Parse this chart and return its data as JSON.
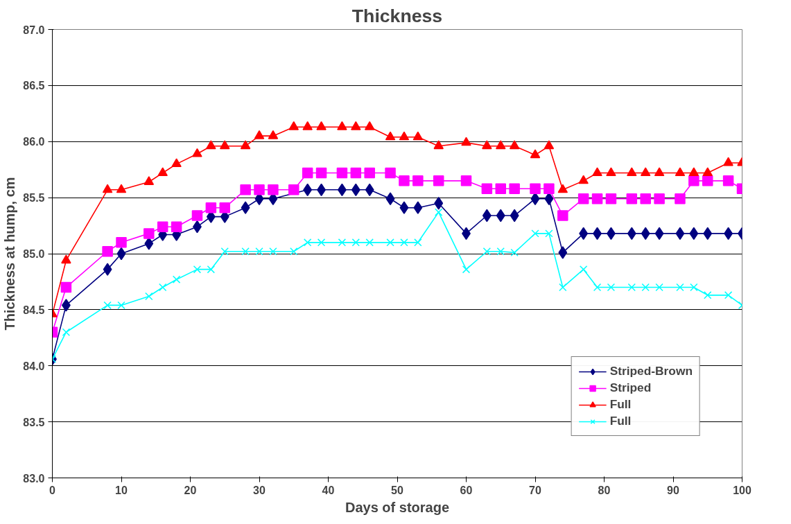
{
  "chart_data": {
    "type": "line",
    "title": "Thickness",
    "xlabel": "Days of storage",
    "ylabel": "Thickness at hump, cm",
    "x": [
      0,
      2,
      8,
      10,
      14,
      16,
      18,
      21,
      23,
      25,
      28,
      30,
      32,
      35,
      37,
      39,
      42,
      44,
      46,
      49,
      51,
      53,
      56,
      60,
      63,
      65,
      67,
      70,
      72,
      74,
      77,
      79,
      81,
      84,
      86,
      88,
      91,
      93,
      95,
      98,
      100
    ],
    "series": [
      {
        "name": "Striped-Brown",
        "color": "#000080",
        "marker": "diamond",
        "x": [
          0,
          2,
          8,
          10,
          14,
          16,
          18,
          21,
          23,
          25,
          28,
          30,
          32,
          37,
          39,
          42,
          44,
          46,
          49,
          51,
          53,
          56,
          60,
          63,
          65,
          67,
          70,
          72,
          74,
          77,
          79,
          81,
          84,
          86,
          88,
          91,
          93,
          95,
          98,
          100
        ],
        "values": [
          84.06,
          84.54,
          84.86,
          85.0,
          85.09,
          85.17,
          85.17,
          85.24,
          85.33,
          85.33,
          85.41,
          85.49,
          85.49,
          85.57,
          85.57,
          85.57,
          85.57,
          85.57,
          85.49,
          85.41,
          85.41,
          85.45,
          85.18,
          85.34,
          85.34,
          85.34,
          85.49,
          85.49,
          85.01,
          85.18,
          85.18,
          85.18,
          85.18,
          85.18,
          85.18,
          85.18,
          85.18,
          85.18,
          85.18,
          85.18
        ]
      },
      {
        "name": "Striped",
        "color": "#ff00ff",
        "marker": "square",
        "values": [
          84.3,
          84.7,
          85.02,
          85.1,
          85.18,
          85.24,
          85.24,
          85.34,
          85.41,
          85.41,
          85.57,
          85.57,
          85.57,
          85.57,
          85.72,
          85.72,
          85.72,
          85.72,
          85.72,
          85.72,
          85.65,
          85.65,
          85.65,
          85.65,
          85.58,
          85.58,
          85.58,
          85.58,
          85.58,
          85.34,
          85.49,
          85.49,
          85.49,
          85.49,
          85.49,
          85.49,
          85.49,
          85.65,
          85.65,
          85.65,
          85.58
        ]
      },
      {
        "name": "Full",
        "color": "#ff0000",
        "marker": "triangle",
        "values": [
          84.46,
          84.94,
          85.57,
          85.57,
          85.64,
          85.72,
          85.8,
          85.89,
          85.96,
          85.96,
          85.96,
          86.05,
          86.05,
          86.13,
          86.13,
          86.13,
          86.13,
          86.13,
          86.13,
          86.04,
          86.04,
          86.04,
          85.96,
          85.99,
          85.96,
          85.96,
          85.96,
          85.88,
          85.96,
          85.57,
          85.65,
          85.72,
          85.72,
          85.72,
          85.72,
          85.72,
          85.72,
          85.72,
          85.72,
          85.81,
          85.81
        ]
      },
      {
        "name": "Full",
        "color": "#00ffff",
        "marker": "cross",
        "values": [
          84.06,
          84.3,
          84.54,
          84.54,
          84.62,
          84.7,
          84.77,
          84.86,
          84.86,
          85.02,
          85.02,
          85.02,
          85.02,
          85.02,
          85.1,
          85.1,
          85.1,
          85.1,
          85.1,
          85.1,
          85.1,
          85.1,
          85.37,
          84.86,
          85.02,
          85.02,
          85.01,
          85.18,
          85.18,
          84.7,
          84.86,
          84.7,
          84.7,
          84.7,
          84.7,
          84.7,
          84.7,
          84.7,
          84.63,
          84.63,
          84.54
        ]
      }
    ],
    "xlim": [
      0,
      100
    ],
    "xticks": [
      0,
      10,
      20,
      30,
      40,
      50,
      60,
      70,
      80,
      90,
      100
    ],
    "ylim": [
      83,
      87
    ],
    "yticks": [
      {
        "value": 83,
        "label": "83.0"
      },
      {
        "value": 83.5,
        "label": "83.5"
      },
      {
        "value": 84,
        "label": "84.0"
      },
      {
        "value": 84.5,
        "label": "84.5"
      },
      {
        "value": 85,
        "label": "85.0"
      },
      {
        "value": 85.5,
        "label": "85.5"
      },
      {
        "value": 86,
        "label": "86.0"
      },
      {
        "value": 86.5,
        "label": "86.5"
      },
      {
        "value": 87,
        "label": "87.0"
      }
    ],
    "grid": "y",
    "legend": "bottom right",
    "line_style": "solid"
  }
}
